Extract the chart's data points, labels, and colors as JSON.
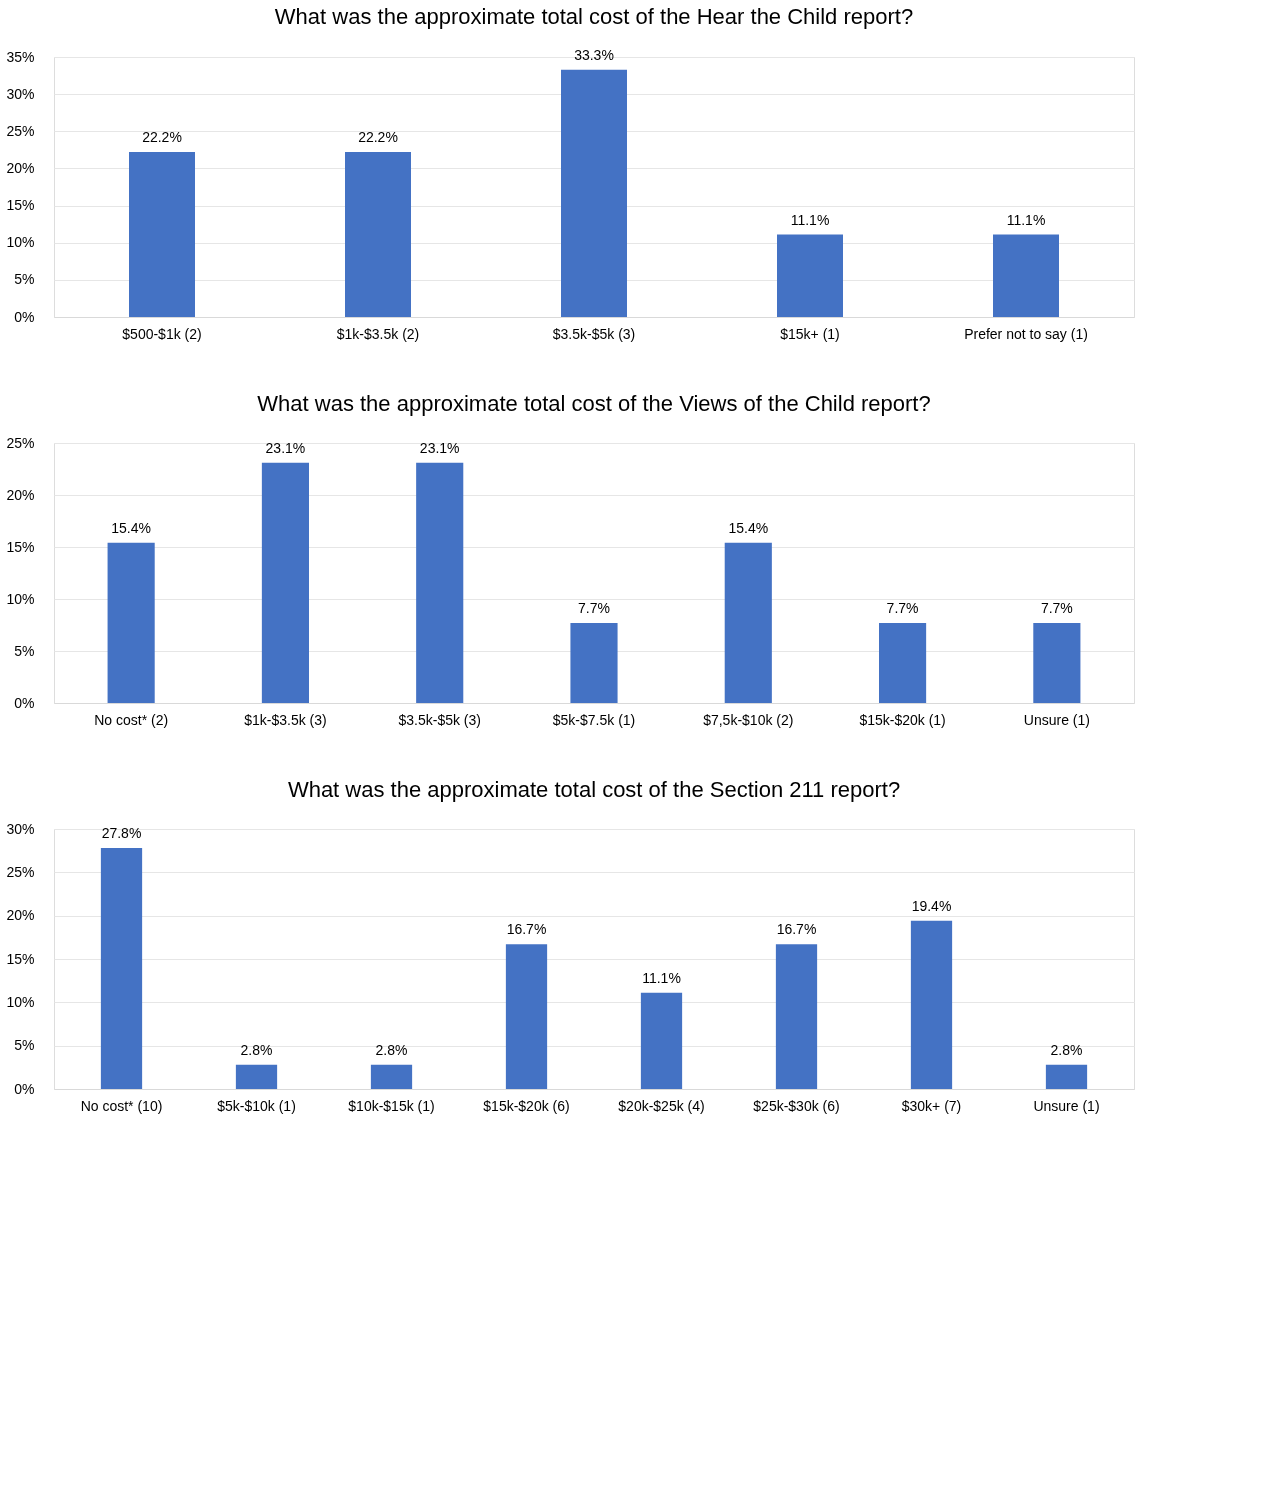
{
  "chart_data": [
    {
      "type": "bar",
      "title": "What was the approximate total cost of the Hear the Child report?",
      "categories": [
        "$500-$1k (2)",
        "$1k-$3.5k (2)",
        "$3.5k-$5k (3)",
        "$15k+ (1)",
        "Prefer not to say (1)"
      ],
      "values": [
        22.2,
        22.2,
        33.3,
        11.1,
        11.1
      ],
      "value_labels": [
        "22.2%",
        "22.2%",
        "33.3%",
        "11.1%",
        "11.1%"
      ],
      "color": "#4472c4",
      "ylim": [
        0,
        35
      ],
      "yticks": [
        {
          "value": 0,
          "label": "0%"
        },
        {
          "value": 5,
          "label": "5%"
        },
        {
          "value": 10,
          "label": "10%"
        },
        {
          "value": 15,
          "label": "15%"
        },
        {
          "value": 20,
          "label": "20%"
        },
        {
          "value": 25,
          "label": "25%"
        },
        {
          "value": 30,
          "label": "30%"
        },
        {
          "value": 35,
          "label": "35%"
        }
      ],
      "grid": "y"
    },
    {
      "type": "bar",
      "title": "What was the approximate total cost of the Views of the Child report?",
      "categories": [
        "No cost* (2)",
        "$1k-$3.5k (3)",
        "$3.5k-$5k (3)",
        "$5k-$7.5k (1)",
        "$7,5k-$10k (2)",
        "$15k-$20k (1)",
        "Unsure (1)"
      ],
      "values": [
        15.4,
        23.1,
        23.1,
        7.7,
        15.4,
        7.7,
        7.7
      ],
      "value_labels": [
        "15.4%",
        "23.1%",
        "23.1%",
        "7.7%",
        "15.4%",
        "7.7%",
        "7.7%"
      ],
      "color": "#4472c4",
      "ylim": [
        0,
        25
      ],
      "yticks": [
        {
          "value": 0,
          "label": "0%"
        },
        {
          "value": 5,
          "label": "5%"
        },
        {
          "value": 10,
          "label": "10%"
        },
        {
          "value": 15,
          "label": "15%"
        },
        {
          "value": 20,
          "label": "20%"
        },
        {
          "value": 25,
          "label": "25%"
        }
      ],
      "grid": "y"
    },
    {
      "type": "bar",
      "title": "What was the approximate total cost of the Section 211 report?",
      "categories": [
        "No cost* (10)",
        "$5k-$10k (1)",
        "$10k-$15k (1)",
        "$15k-$20k (6)",
        "$20k-$25k (4)",
        "$25k-$30k (6)",
        "$30k+ (7)",
        "Unsure (1)"
      ],
      "values": [
        27.8,
        2.8,
        2.8,
        16.7,
        11.1,
        16.7,
        19.4,
        2.8
      ],
      "value_labels": [
        "27.8%",
        "2.8%",
        "2.8%",
        "16.7%",
        "11.1%",
        "16.7%",
        "19.4%",
        "2.8%"
      ],
      "color": "#4472c4",
      "ylim": [
        0,
        30
      ],
      "yticks": [
        {
          "value": 0,
          "label": "0%"
        },
        {
          "value": 5,
          "label": "5%"
        },
        {
          "value": 10,
          "label": "10%"
        },
        {
          "value": 15,
          "label": "15%"
        },
        {
          "value": 20,
          "label": "20%"
        },
        {
          "value": 25,
          "label": "25%"
        },
        {
          "value": 30,
          "label": "30%"
        }
      ],
      "grid": "y"
    }
  ]
}
